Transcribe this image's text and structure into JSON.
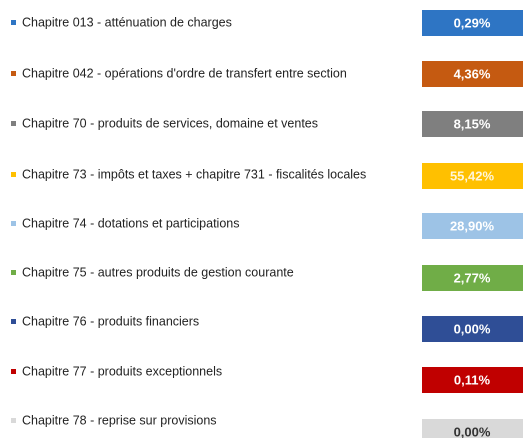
{
  "items": [
    {
      "label": "Chapitre 013 - atténuation de charges",
      "value": "0,29%",
      "color": "#2e75c4",
      "text_color": "#ffffff"
    },
    {
      "label": "Chapitre 042 - opérations d'ordre de transfert entre section",
      "value": "4,36%",
      "color": "#c55a11",
      "text_color": "#ffffff"
    },
    {
      "label": "Chapitre 70 - produits de services, domaine et ventes",
      "value": "8,15%",
      "color": "#7f7f7f",
      "text_color": "#ffffff"
    },
    {
      "label": "Chapitre 73 - impôts et taxes + chapitre 731 - fiscalités locales",
      "value": "55,42%",
      "color": "#ffc000",
      "text_color": "#fff6d8"
    },
    {
      "label": "Chapitre 74 - dotations et participations",
      "value": "28,90%",
      "color": "#9dc3e6",
      "text_color": "#ffffff"
    },
    {
      "label": "Chapitre 75 - autres produits de gestion courante",
      "value": "2,77%",
      "color": "#70ad47",
      "text_color": "#ffffff"
    },
    {
      "label": "Chapitre 76 - produits financiers",
      "value": "0,00%",
      "color": "#2f4e96",
      "text_color": "#ffffff"
    },
    {
      "label": "Chapitre 77 - produits exceptionnels",
      "value": "0,11%",
      "color": "#c00000",
      "text_color": "#ffffff"
    },
    {
      "label": "Chapitre 78 - reprise sur provisions",
      "value": "0,00%",
      "color": "#d9d9d9",
      "text_color": "#333333"
    }
  ]
}
